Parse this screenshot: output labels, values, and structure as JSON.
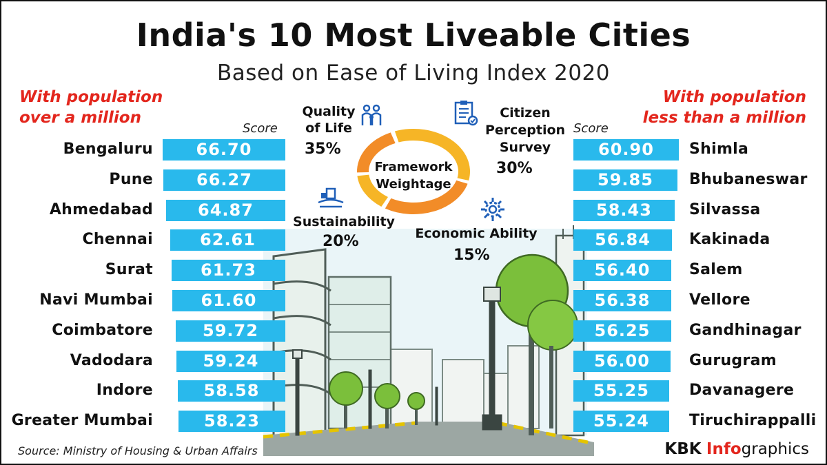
{
  "title": "India's 10 Most Liveable Cities",
  "subtitle": "Based on Ease of Living Index 2020",
  "colors": {
    "bar": "#29b9ec",
    "accent_red": "#e3261d",
    "ring_orange": "#f28c28",
    "ring_yellow": "#f6b526"
  },
  "chart_data": [
    {
      "type": "bar",
      "title": "With population over a million",
      "group_label_lines": [
        "With population",
        "over a million"
      ],
      "ylabel": "Score",
      "categories": [
        "Bengaluru",
        "Pune",
        "Ahmedabad",
        "Chennai",
        "Surat",
        "Navi Mumbai",
        "Coimbatore",
        "Vadodara",
        "Indore",
        "Greater Mumbai"
      ],
      "values": [
        66.7,
        66.27,
        64.87,
        62.61,
        61.73,
        61.6,
        59.72,
        59.24,
        58.58,
        58.23
      ],
      "value_labels": [
        "66.70",
        "66.27",
        "64.87",
        "62.61",
        "61.73",
        "61.60",
        "59.72",
        "59.24",
        "58.58",
        "58.23"
      ]
    },
    {
      "type": "bar",
      "title": "With population less than a million",
      "group_label_lines": [
        "With population",
        "less than a million"
      ],
      "ylabel": "Score",
      "categories": [
        "Shimla",
        "Bhubaneswar",
        "Silvassa",
        "Kakinada",
        "Salem",
        "Vellore",
        "Gandhinagar",
        "Gurugram",
        "Davanagere",
        "Tiruchirappalli"
      ],
      "values": [
        60.9,
        59.85,
        58.43,
        56.84,
        56.4,
        56.38,
        56.25,
        56.0,
        55.25,
        55.24
      ],
      "value_labels": [
        "60.90",
        "59.85",
        "58.43",
        "56.84",
        "56.40",
        "56.38",
        "56.25",
        "56.00",
        "55.25",
        "55.24"
      ]
    },
    {
      "type": "pie",
      "title": "Framework Weightage",
      "title_lines": [
        "Framework",
        "Weightage"
      ],
      "categories": [
        "Quality of Life",
        "Citizen Perception Survey",
        "Economic Ability",
        "Sustainability"
      ],
      "values": [
        35,
        30,
        15,
        20
      ],
      "labels": [
        {
          "lines": [
            "Quality",
            "of Life"
          ],
          "pct": "35%"
        },
        {
          "lines": [
            "Citizen",
            "Perception",
            "Survey"
          ],
          "pct": "30%"
        },
        {
          "lines": [
            "Economic Ability"
          ],
          "pct": "15%"
        },
        {
          "lines": [
            "Sustainability"
          ],
          "pct": "20%"
        }
      ]
    }
  ],
  "icons": [
    "people-icon",
    "survey-clipboard-icon",
    "gear-icon",
    "sustainability-icon"
  ],
  "source": "Source: Ministry of Housing & Urban Affairs",
  "brand": {
    "kbk": "KBK",
    "info": "Info",
    "rest": "graphics"
  }
}
